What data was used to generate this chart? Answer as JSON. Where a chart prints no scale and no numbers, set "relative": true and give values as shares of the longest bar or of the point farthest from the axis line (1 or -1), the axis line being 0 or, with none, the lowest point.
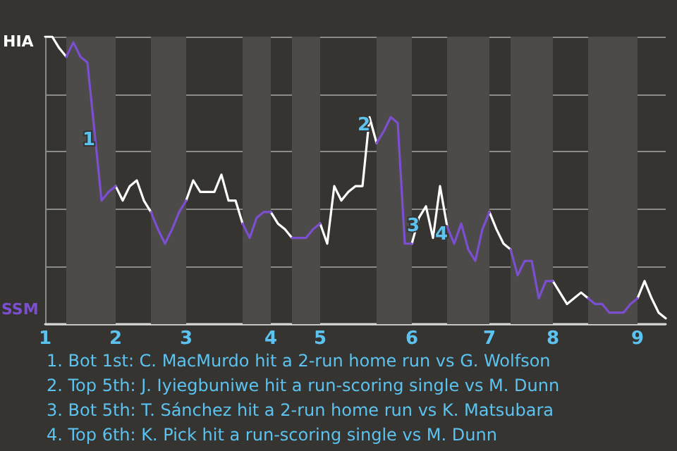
{
  "chart_data": {
    "type": "line",
    "relative": true,
    "categories": [
      "1",
      null,
      null,
      null,
      null,
      null,
      null,
      null,
      null,
      null,
      "2",
      null,
      null,
      null,
      null,
      null,
      null,
      null,
      null,
      null,
      "3",
      null,
      null,
      null,
      null,
      null,
      null,
      null,
      null,
      null,
      null,
      null,
      "4",
      null,
      null,
      null,
      null,
      null,
      null,
      "5",
      null,
      null,
      null,
      null,
      null,
      null,
      null,
      null,
      null,
      null,
      null,
      null,
      "6",
      null,
      null,
      null,
      null,
      null,
      null,
      null,
      null,
      null,
      null,
      "7",
      null,
      null,
      null,
      null,
      null,
      null,
      null,
      null,
      "8",
      null,
      null,
      null,
      null,
      null,
      null,
      null,
      null,
      null,
      null,
      null,
      "9",
      null,
      null,
      null,
      null
    ],
    "grid": "y",
    "marker": "none",
    "series": [
      {
        "color": "#ffffff",
        "values": [
          1,
          1,
          0.96,
          0.93,
          null,
          null,
          null,
          null,
          null,
          null,
          0.48,
          0.43,
          0.48,
          0.5,
          0.43,
          0.39,
          null,
          null,
          null,
          null,
          0.43,
          0.5,
          0.46,
          0.46,
          0.46,
          0.52,
          0.43,
          0.43,
          0.35,
          null,
          null,
          null,
          0.39,
          0.35,
          0.33,
          0.3,
          null,
          null,
          null,
          0.35,
          0.28,
          0.48,
          0.43,
          0.46,
          0.48,
          0.48,
          0.72,
          0.63,
          null,
          null,
          null,
          null,
          0.28,
          0.37,
          0.41,
          0.3,
          0.48,
          0.34,
          null,
          null,
          null,
          null,
          null,
          0.39,
          0.33,
          0.28,
          0.26,
          null,
          null,
          null,
          null,
          null,
          0.15,
          0.11,
          0.07,
          0.09,
          0.11,
          0.09,
          null,
          null,
          null,
          null,
          null,
          null,
          0.09,
          0.15,
          0.09,
          0.04,
          0.02
        ]
      },
      {
        "color": "#7b4fcf",
        "values": [
          null,
          null,
          null,
          0.93,
          0.98,
          0.93,
          0.91,
          0.67,
          0.43,
          0.46,
          0.48,
          null,
          null,
          null,
          null,
          0.39,
          0.33,
          0.28,
          0.33,
          0.39,
          0.43,
          null,
          null,
          null,
          null,
          null,
          null,
          null,
          0.35,
          0.3,
          0.37,
          0.39,
          0.39,
          null,
          null,
          0.3,
          0.3,
          0.3,
          0.33,
          0.35,
          null,
          null,
          null,
          null,
          null,
          null,
          null,
          0.63,
          0.67,
          0.72,
          0.7,
          0.28,
          0.28,
          null,
          null,
          null,
          null,
          0.34,
          0.28,
          0.35,
          0.26,
          0.22,
          0.33,
          0.39,
          null,
          null,
          0.26,
          0.17,
          0.22,
          0.22,
          0.09,
          0.15,
          0.15,
          null,
          null,
          null,
          null,
          0.09,
          0.07,
          0.07,
          0.04,
          0.04,
          0.04,
          0.07,
          0.09,
          null,
          null,
          null,
          null
        ]
      }
    ],
    "annotations": [
      {
        "text": "1",
        "y": 0.67
      },
      {
        "text": "2",
        "y": 0.72
      },
      {
        "text": "3",
        "y": 0.37
      },
      {
        "text": "4",
        "y": 0.34
      },
      "HIA",
      "SSM",
      "1. Bot 1st: C. MacMurdo hit a 2-run home run vs G. Wolfson",
      "2. Top 5th: J. Iyiegbuniwe hit a run-scoring single vs M. Dunn",
      "3. Bot 5th: T. Sánchez hit a 2-run home run vs K. Matsubara",
      "4. Top 6th: K. Pick hit a run-scoring single vs M. Dunn"
    ]
  }
}
